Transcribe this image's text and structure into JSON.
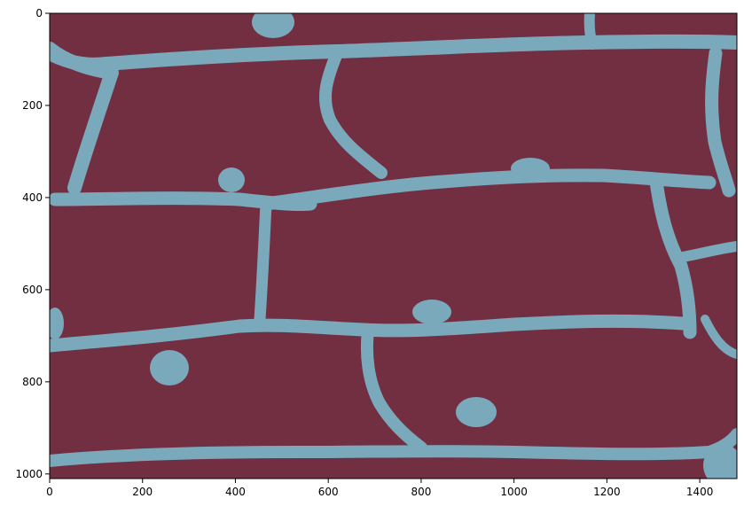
{
  "image": {
    "description_of_content": "segmentation mask",
    "colors": {
      "background_class": "#722f42",
      "foreground_class": "#7aa9bc",
      "frame": "#000000"
    },
    "x_extent": [
      0,
      1480
    ],
    "y_extent": [
      0,
      1010
    ],
    "y_inverted": true
  },
  "axes": {
    "x_ticks": [
      {
        "value": 0,
        "label": "0"
      },
      {
        "value": 200,
        "label": "200"
      },
      {
        "value": 400,
        "label": "400"
      },
      {
        "value": 600,
        "label": "600"
      },
      {
        "value": 800,
        "label": "800"
      },
      {
        "value": 1000,
        "label": "1000"
      },
      {
        "value": 1200,
        "label": "1200"
      },
      {
        "value": 1400,
        "label": "1400"
      }
    ],
    "y_ticks": [
      {
        "value": 0,
        "label": "0"
      },
      {
        "value": 200,
        "label": "200"
      },
      {
        "value": 400,
        "label": "400"
      },
      {
        "value": 600,
        "label": "600"
      },
      {
        "value": 800,
        "label": "800"
      },
      {
        "value": 1000,
        "label": "1000"
      }
    ]
  }
}
